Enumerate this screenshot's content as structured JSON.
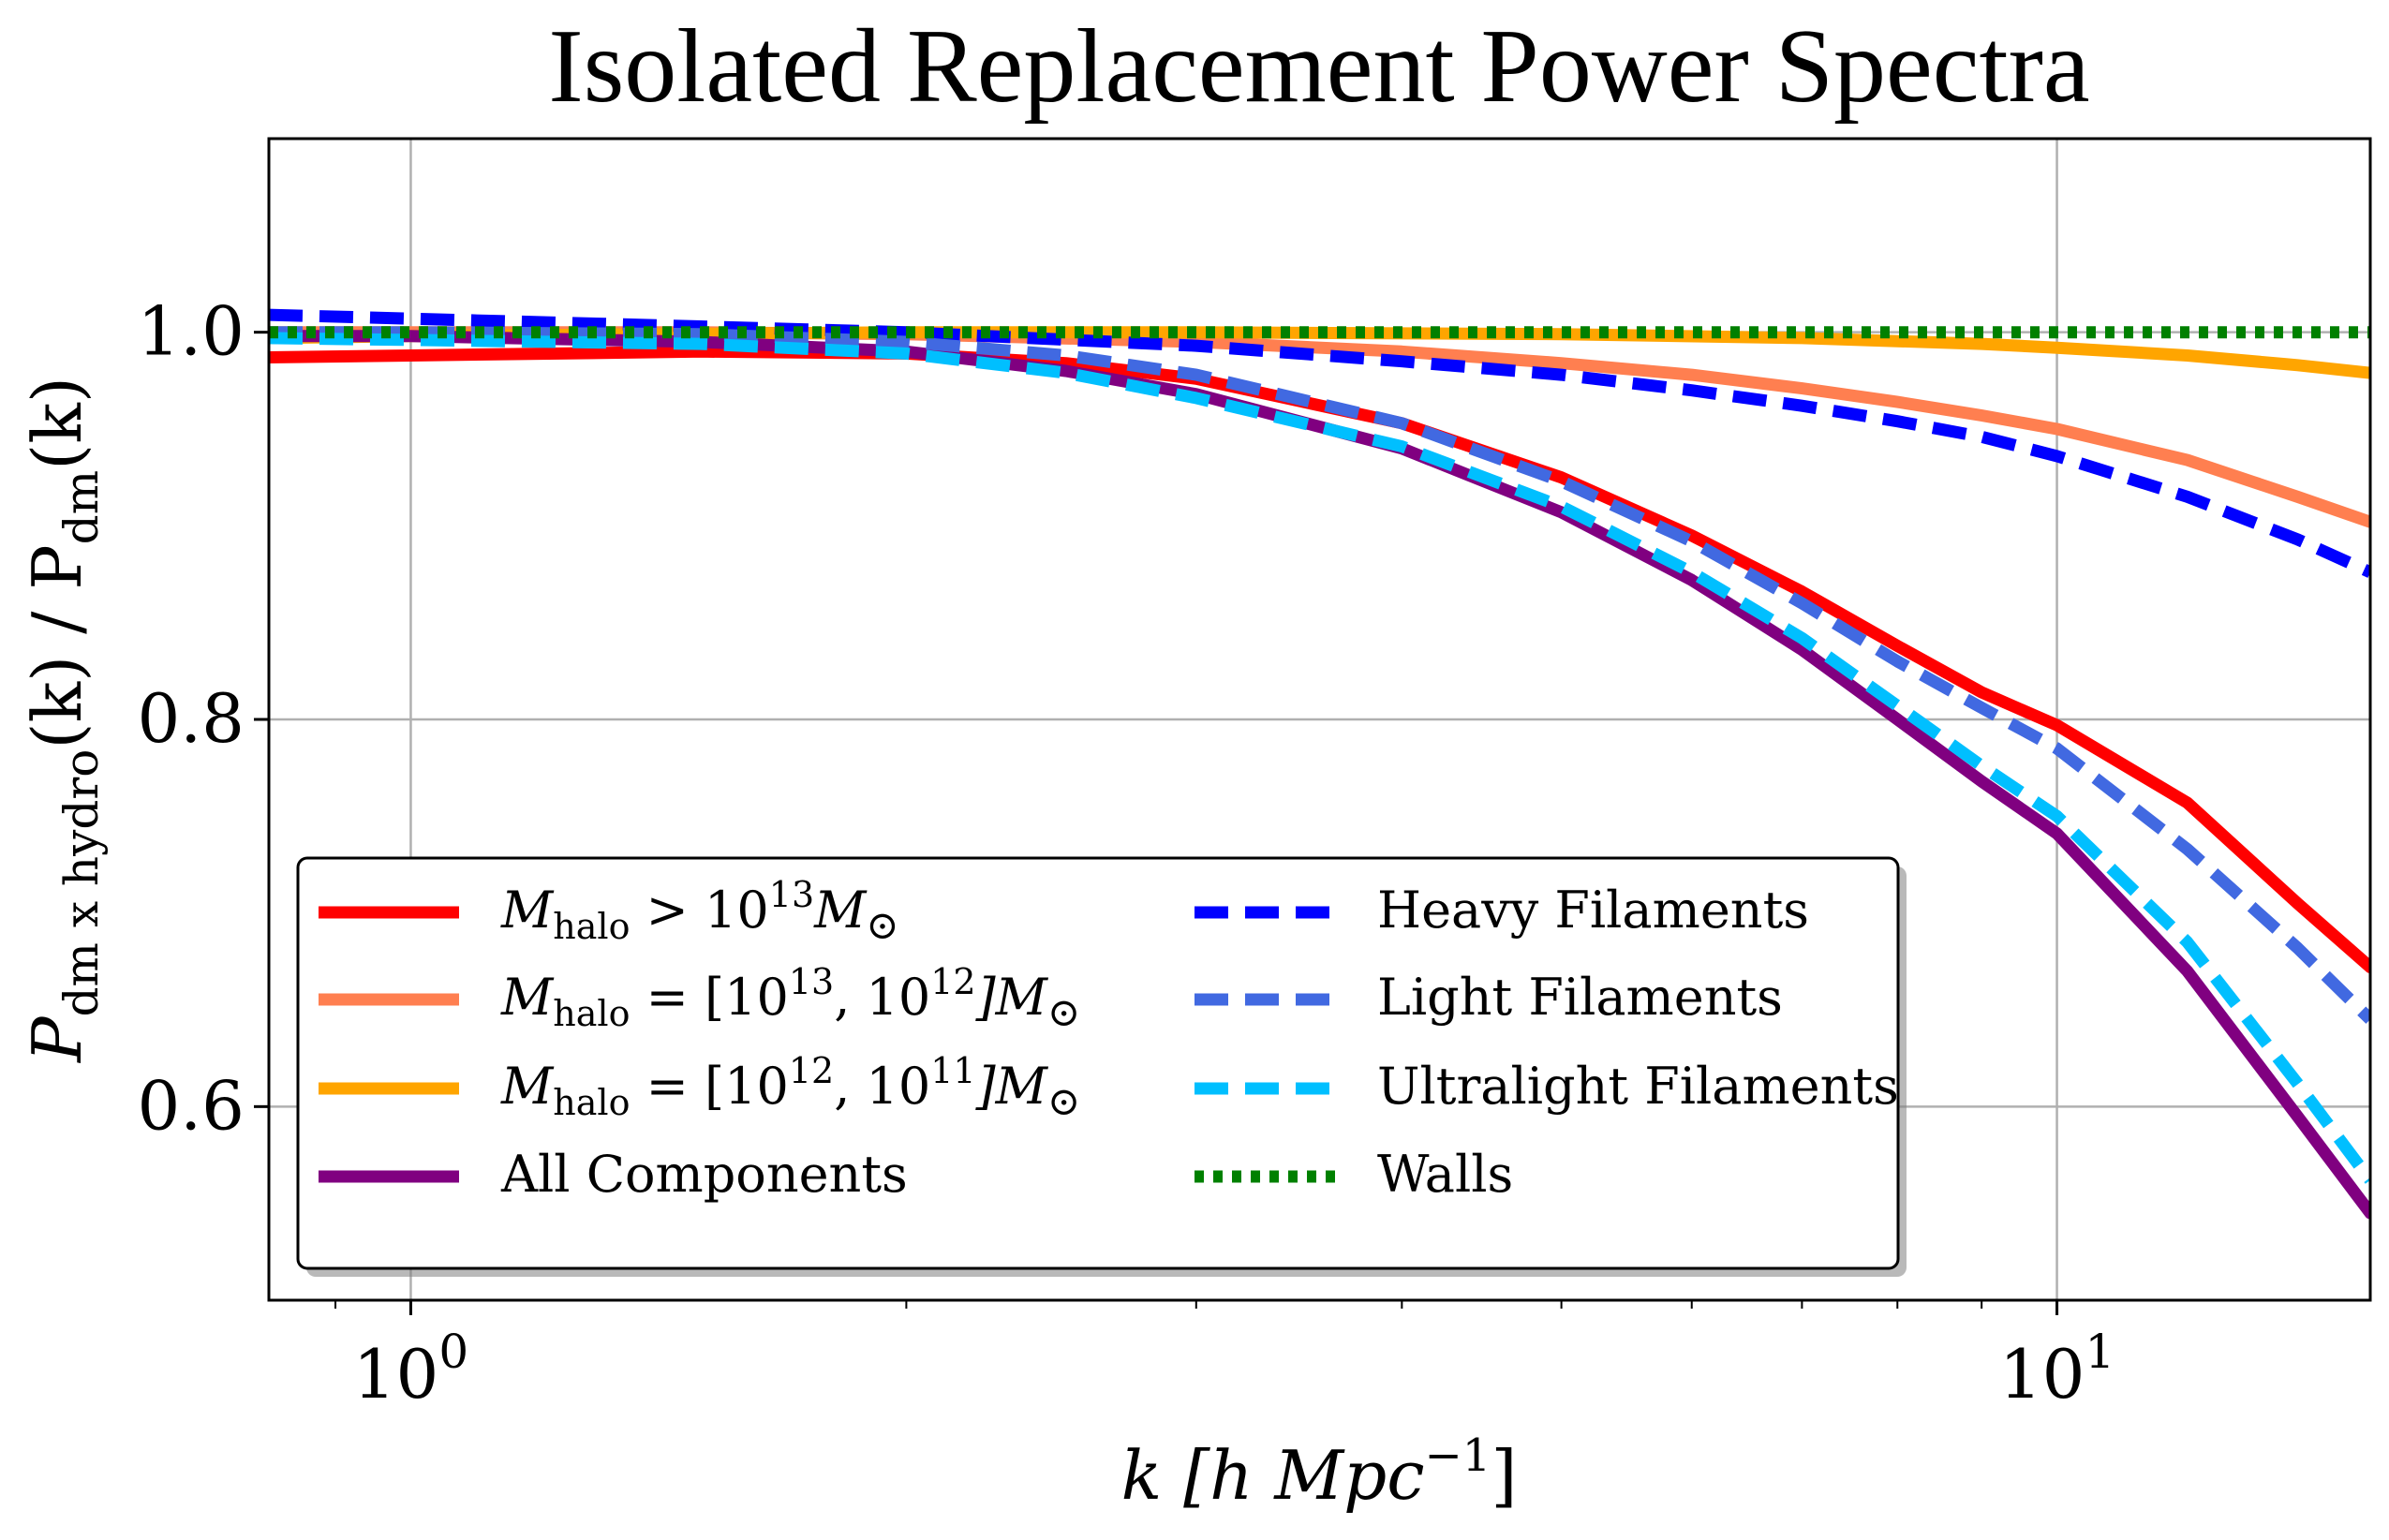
{
  "chart_data": {
    "type": "line",
    "title": "Isolated Replacement Power Spectra",
    "xlabel": {
      "main": "k [h Mpc",
      "sup": "−1",
      "close": "]"
    },
    "ylabel": {
      "P": "P",
      "sub1": "dm x hydro",
      "mid": "(k) / P",
      "sub2": "dm",
      "end": "(k)"
    },
    "x_scale": "log",
    "xlim": [
      0.82,
      15.5
    ],
    "ylim": [
      0.5,
      1.1
    ],
    "grid": true,
    "legend_placement": "lower-left",
    "x_ticks": [
      {
        "value": 1,
        "base": "10",
        "exp": "0"
      },
      {
        "value": 10,
        "base": "10",
        "exp": "1"
      }
    ],
    "y_ticks": [
      {
        "value": 0.6,
        "label": "0.6"
      },
      {
        "value": 0.8,
        "label": "0.8"
      },
      {
        "value": 1.0,
        "label": "1.0"
      }
    ],
    "series": [
      {
        "name": "M_halo > 10^13 M_⊙",
        "legend": {
          "pre": "M",
          "sub": "halo",
          "rel": " > 10",
          "e1": "13",
          "mid": "",
          "e2": "",
          "post": "M",
          "sym": "⊙"
        },
        "color": "#ff0000",
        "dash": "solid",
        "x": [
          0.82,
          1.0,
          1.5,
          2.0,
          2.5,
          3.0,
          4.0,
          5.0,
          6.0,
          7.0,
          8.0,
          9.0,
          10.0,
          12.0,
          14.0,
          15.5
        ],
        "y": [
          0.987,
          0.988,
          0.99,
          0.989,
          0.984,
          0.976,
          0.953,
          0.925,
          0.895,
          0.866,
          0.838,
          0.814,
          0.797,
          0.757,
          0.705,
          0.672
        ]
      },
      {
        "name": "M_halo = [10^13, 10^12] M_⊙",
        "legend": {
          "pre": "M",
          "sub": "halo",
          "rel": " = [10",
          "e1": "13",
          "mid": ", 10",
          "e2": "12",
          "post": "]M",
          "sym": "⊙"
        },
        "color": "#ff7f50",
        "dash": "solid",
        "x": [
          0.82,
          1.0,
          1.5,
          2.0,
          3.0,
          4.0,
          5.0,
          6.0,
          7.0,
          8.0,
          9.0,
          10.0,
          12.0,
          14.0,
          15.5
        ],
        "y": [
          1.0,
          1.0,
          1.0,
          0.999,
          0.995,
          0.99,
          0.984,
          0.978,
          0.971,
          0.964,
          0.957,
          0.95,
          0.934,
          0.915,
          0.902
        ]
      },
      {
        "name": "M_halo = [10^12, 10^11] M_⊙",
        "legend": {
          "pre": "M",
          "sub": "halo",
          "rel": " = [10",
          "e1": "12",
          "mid": ", 10",
          "e2": "11",
          "post": "]M",
          "sym": "⊙"
        },
        "color": "#ffa500",
        "dash": "solid",
        "x": [
          0.82,
          1.0,
          2.0,
          3.0,
          5.0,
          7.0,
          9.0,
          10.0,
          12.0,
          14.0,
          15.5
        ],
        "y": [
          0.997,
          0.998,
          1.0,
          1.0,
          0.999,
          0.997,
          0.994,
          0.992,
          0.988,
          0.983,
          0.979
        ]
      },
      {
        "name": "All Components",
        "legend": {
          "plain": "All Components"
        },
        "color": "#800080",
        "dash": "solid",
        "x": [
          0.82,
          1.0,
          1.5,
          2.0,
          2.5,
          3.0,
          4.0,
          5.0,
          6.0,
          7.0,
          8.0,
          9.0,
          10.0,
          12.0,
          14.0,
          15.5
        ],
        "y": [
          0.998,
          0.998,
          0.995,
          0.99,
          0.98,
          0.968,
          0.94,
          0.907,
          0.872,
          0.836,
          0.8,
          0.768,
          0.741,
          0.67,
          0.595,
          0.545
        ]
      },
      {
        "name": "Heavy Filaments",
        "legend": {
          "plain": "Heavy Filaments"
        },
        "color": "#0000ff",
        "dash": "dashed",
        "x": [
          0.82,
          1.0,
          1.5,
          2.0,
          3.0,
          4.0,
          5.0,
          6.0,
          7.0,
          8.0,
          9.0,
          10.0,
          12.0,
          14.0,
          15.5
        ],
        "y": [
          1.009,
          1.007,
          1.003,
          1.0,
          0.993,
          0.985,
          0.978,
          0.97,
          0.962,
          0.954,
          0.946,
          0.936,
          0.915,
          0.893,
          0.876
        ]
      },
      {
        "name": "Light Filaments",
        "legend": {
          "plain": "Light Filaments"
        },
        "color": "#4169e1",
        "dash": "dashed",
        "x": [
          0.82,
          1.0,
          1.5,
          2.0,
          2.5,
          3.0,
          4.0,
          5.0,
          6.0,
          7.0,
          8.0,
          9.0,
          10.0,
          12.0,
          14.0,
          15.5
        ],
        "y": [
          1.0,
          1.0,
          0.999,
          0.995,
          0.988,
          0.978,
          0.953,
          0.923,
          0.892,
          0.86,
          0.83,
          0.806,
          0.785,
          0.733,
          0.682,
          0.645
        ]
      },
      {
        "name": "Ultralight Filaments",
        "legend": {
          "plain": "Ultralight Filaments"
        },
        "color": "#00bfff",
        "dash": "dashed",
        "x": [
          0.82,
          1.0,
          1.5,
          2.0,
          2.5,
          3.0,
          4.0,
          5.0,
          6.0,
          7.0,
          8.0,
          9.0,
          10.0,
          12.0,
          14.0,
          15.5
        ],
        "y": [
          0.997,
          0.996,
          0.994,
          0.989,
          0.979,
          0.966,
          0.941,
          0.91,
          0.876,
          0.842,
          0.807,
          0.776,
          0.75,
          0.685,
          0.612,
          0.562
        ]
      },
      {
        "name": "Walls",
        "legend": {
          "plain": "Walls"
        },
        "color": "#008000",
        "dash": "dotted",
        "x": [
          0.82,
          1.0,
          2.0,
          5.0,
          10.0,
          15.5
        ],
        "y": [
          1.0,
          1.0,
          1.0,
          1.0,
          1.0,
          1.0
        ]
      }
    ]
  }
}
